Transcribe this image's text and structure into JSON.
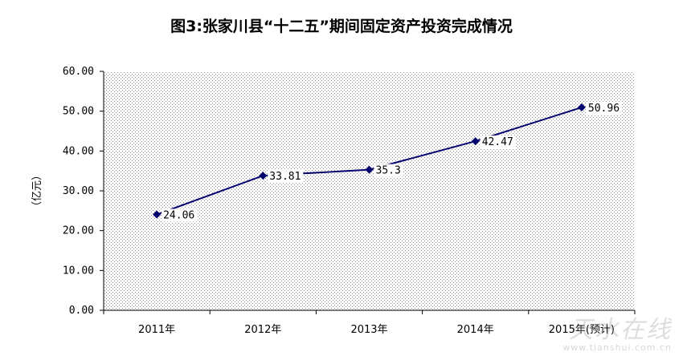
{
  "chart_data": {
    "type": "line",
    "title": "图3:张家川县“十二五”期间固定资产投资完成情况",
    "ylabel": "（亿元）",
    "xlabel": "",
    "categories": [
      "2011年",
      "2012年",
      "2013年",
      "2014年",
      "2015年(预计)"
    ],
    "series": [
      {
        "values": [
          24.06,
          33.81,
          35.3,
          42.47,
          50.96
        ]
      }
    ],
    "data_labels": [
      "24.06",
      "33.81",
      "35.3",
      "42.47",
      "50.96"
    ],
    "y_ticks": [
      "0.00",
      "10.00",
      "20.00",
      "30.00",
      "40.00",
      "50.00",
      "60.00"
    ],
    "ylim": [
      0,
      60
    ],
    "grid": false,
    "legend": "none",
    "colors": {
      "line": "#00006e",
      "marker": "#00006e",
      "plot_dots": "#8c8c8c",
      "axis": "#000000"
    }
  },
  "watermark": {
    "mark": "天水在线",
    "url": "www.tianshui.com.cn"
  }
}
